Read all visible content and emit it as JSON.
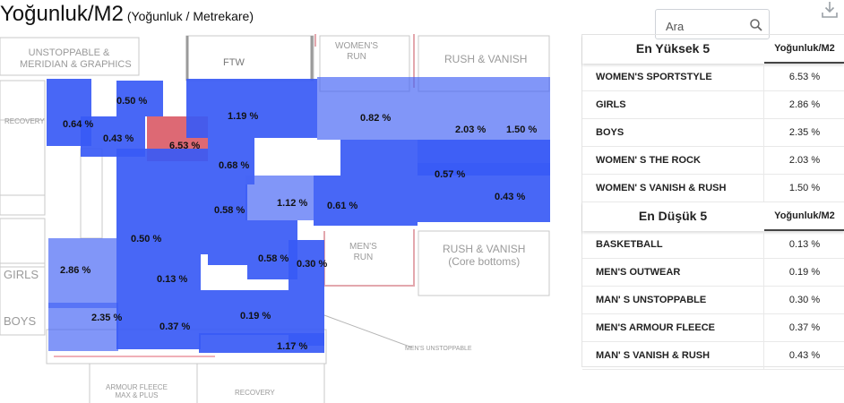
{
  "header": {
    "title": "Yoğunluk/M2",
    "subtitle": "(Yoğunluk / Metrekare)"
  },
  "search": {
    "placeholder": "Ara"
  },
  "icons": {
    "search": "search-icon",
    "download": "download-icon"
  },
  "colors": {
    "high": "#da5c68",
    "zone": "#385af5",
    "zone_light": "#6a86f5",
    "header_underline": "#444444"
  },
  "floorplan": {
    "labels": [
      "UNSTOPPABLE &\nMERIDIAN & GRAPHICS",
      "RECOVERY",
      "FTW",
      "WOMEN'S\nRUN",
      "RUSH & VANISH",
      "GIRLS",
      "BOYS",
      "MEN'S\nRUN",
      "RUSH & VANISH\n(Core bottoms)",
      "MEN'S UNSTOPPABLE",
      "ARMOUR FLEECE\nMAX & PLUS",
      "RECOVERY"
    ],
    "values": [
      "0.50 %",
      "0.64 %",
      "0.43 %",
      "6.53 %",
      "1.19 %",
      "0.82 %",
      "2.03 %",
      "1.50 %",
      "0.68 %",
      "0.57 %",
      "1.12 %",
      "0.61 %",
      "0.43 %",
      "0.58 %",
      "0.50 %",
      "0.58 %",
      "0.30 %",
      "2.86 %",
      "0.13 %",
      "2.35 %",
      "0.37 %",
      "0.19 %",
      "1.17 %"
    ]
  },
  "top5": {
    "title": "En Yüksek 5",
    "column": "Yoğunluk/M2",
    "rows": [
      {
        "name": "WOMEN'S SPORTSTYLE",
        "value": "6.53 %"
      },
      {
        "name": "GIRLS",
        "value": "2.86 %"
      },
      {
        "name": "BOYS",
        "value": "2.35 %"
      },
      {
        "name": "WOMEN' S THE ROCK",
        "value": "2.03 %"
      },
      {
        "name": "WOMEN' S VANISH & RUSH",
        "value": "1.50 %"
      }
    ]
  },
  "bottom5": {
    "title": "En Düşük 5",
    "column": "Yoğunluk/M2",
    "rows": [
      {
        "name": "BASKETBALL",
        "value": "0.13 %"
      },
      {
        "name": "MEN'S OUTWEAR",
        "value": "0.19 %"
      },
      {
        "name": "MAN' S UNSTOPPABLE",
        "value": "0.30 %"
      },
      {
        "name": "MEN'S ARMOUR FLEECE",
        "value": "0.37 %"
      },
      {
        "name": "MAN' S VANISH & RUSH",
        "value": "0.43 %"
      }
    ]
  }
}
